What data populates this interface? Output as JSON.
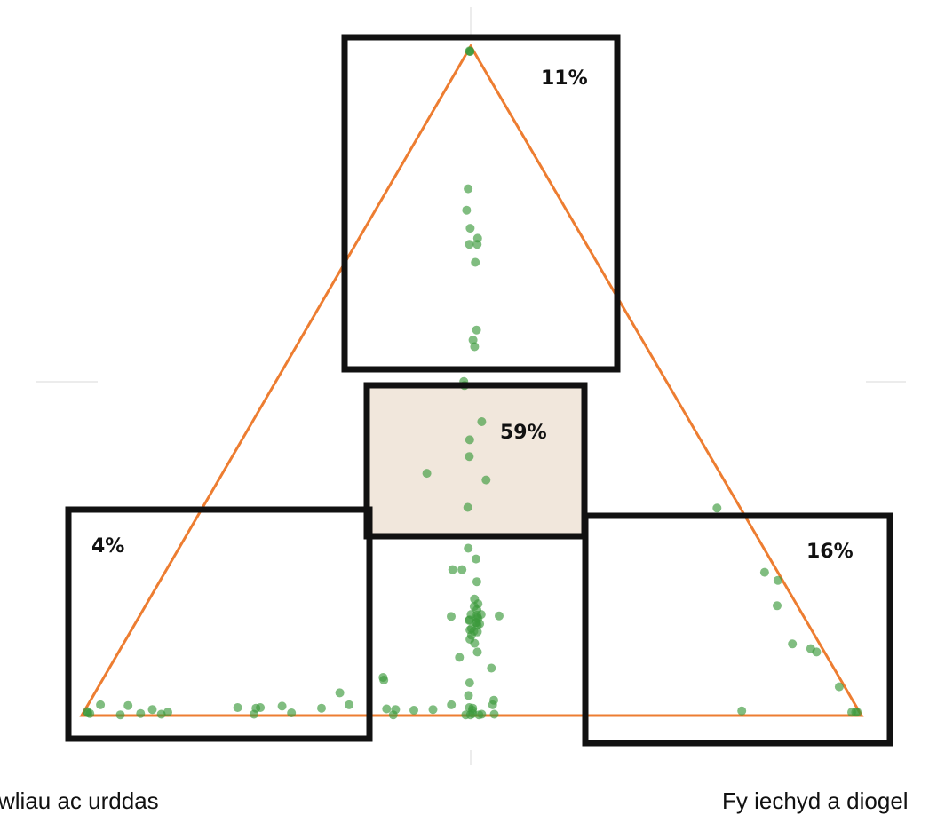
{
  "chart_data": {
    "type": "scatter",
    "layout": "ternary",
    "title": "",
    "corner_labels": {
      "left": "wliau ac urddas",
      "right": "Fy iechyd a diogel"
    },
    "regions": [
      {
        "id": "top",
        "label": "11%",
        "value": 11
      },
      {
        "id": "center",
        "label": "59%",
        "value": 59,
        "highlight_color": "#f1e7dc"
      },
      {
        "id": "left",
        "label": "4%",
        "value": 4
      },
      {
        "id": "right",
        "label": "16%",
        "value": 16
      }
    ],
    "colors": {
      "triangle": "#ed7d31",
      "points": "#3c9a3c",
      "boxes": "#111111"
    },
    "points": [
      [
        0.005,
        0.003,
        0.992
      ],
      [
        0.005,
        0.002,
        0.993
      ],
      [
        0.005,
        0.003,
        0.992
      ],
      [
        0.11,
        0.103,
        0.787
      ],
      [
        0.128,
        0.117,
        0.755
      ],
      [
        0.137,
        0.135,
        0.728
      ],
      [
        0.135,
        0.152,
        0.713
      ],
      [
        0.14,
        0.156,
        0.704
      ],
      [
        0.15,
        0.146,
        0.704
      ],
      [
        0.156,
        0.167,
        0.677
      ],
      [
        0.205,
        0.219,
        0.576
      ],
      [
        0.22,
        0.229,
        0.551
      ],
      [
        0.217,
        0.222,
        0.561
      ],
      [
        0.26,
        0.241,
        0.499
      ],
      [
        0.267,
        0.294,
        0.439
      ],
      [
        0.262,
        0.245,
        0.493
      ],
      [
        0.296,
        0.292,
        0.412
      ],
      [
        0.305,
        0.343,
        0.352
      ],
      [
        0.309,
        0.304,
        0.387
      ],
      [
        0.349,
        0.34,
        0.311
      ],
      [
        0.379,
        0.371,
        0.25
      ],
      [
        0.377,
        0.389,
        0.234
      ],
      [
        0.39,
        0.461,
        0.149
      ],
      [
        0.376,
        0.262,
        0.362
      ],
      [
        0.393,
        0.407,
        0.2
      ],
      [
        0.403,
        0.379,
        0.218
      ],
      [
        0.408,
        0.425,
        0.167
      ],
      [
        0.415,
        0.422,
        0.163
      ],
      [
        0.418,
        0.432,
        0.15
      ],
      [
        0.42,
        0.434,
        0.146
      ],
      [
        0.412,
        0.437,
        0.151
      ],
      [
        0.425,
        0.436,
        0.139
      ],
      [
        0.43,
        0.445,
        0.125
      ],
      [
        0.435,
        0.435,
        0.13
      ],
      [
        0.442,
        0.45,
        0.108
      ],
      [
        0.44,
        0.44,
        0.12
      ],
      [
        0.425,
        0.424,
        0.151
      ],
      [
        0.424,
        0.437,
        0.139
      ],
      [
        0.431,
        0.426,
        0.143
      ],
      [
        0.445,
        0.441,
        0.114
      ],
      [
        0.409,
        0.417,
        0.174
      ],
      [
        0.419,
        0.436,
        0.145
      ],
      [
        0.425,
        0.44,
        0.135
      ],
      [
        0.432,
        0.426,
        0.142
      ],
      [
        0.421,
        0.442,
        0.137
      ],
      [
        0.414,
        0.428,
        0.158
      ],
      [
        0.434,
        0.44,
        0.126
      ],
      [
        0.438,
        0.434,
        0.128
      ],
      [
        0.445,
        0.46,
        0.095
      ],
      [
        0.452,
        0.4,
        0.148
      ],
      [
        0.415,
        0.367,
        0.218
      ],
      [
        0.472,
        0.441,
        0.087
      ],
      [
        0.486,
        0.512,
        0.002
      ],
      [
        0.439,
        0.49,
        0.071
      ],
      [
        0.478,
        0.473,
        0.049
      ],
      [
        0.489,
        0.481,
        0.03
      ],
      [
        0.47,
        0.528,
        0.002
      ],
      [
        0.46,
        0.517,
        0.023
      ],
      [
        0.465,
        0.519,
        0.016
      ],
      [
        0.497,
        0.491,
        0.012
      ],
      [
        0.501,
        0.498,
        0.001
      ],
      [
        0.507,
        0.492,
        0.001
      ],
      [
        0.49,
        0.509,
        0.001
      ],
      [
        0.497,
        0.5,
        0.003
      ],
      [
        0.495,
        0.497,
        0.008
      ],
      [
        0.493,
        0.496,
        0.011
      ],
      [
        0.518,
        0.466,
        0.016
      ],
      [
        0.545,
        0.446,
        0.009
      ],
      [
        0.57,
        0.422,
        0.008
      ],
      [
        0.593,
        0.398,
        0.009
      ],
      [
        0.604,
        0.386,
        0.01
      ],
      [
        0.6,
        0.399,
        0.001
      ],
      [
        0.585,
        0.358,
        0.057
      ],
      [
        0.586,
        0.361,
        0.053
      ],
      [
        0.652,
        0.314,
        0.034
      ],
      [
        0.649,
        0.335,
        0.016
      ],
      [
        0.687,
        0.302,
        0.011
      ],
      [
        0.729,
        0.267,
        0.004
      ],
      [
        0.736,
        0.25,
        0.014
      ],
      [
        0.765,
        0.223,
        0.012
      ],
      [
        0.771,
        0.218,
        0.011
      ],
      [
        0.778,
        0.22,
        0.002
      ],
      [
        0.794,
        0.194,
        0.012
      ],
      [
        0.905,
        0.086,
        0.009
      ],
      [
        0.887,
        0.108,
        0.005
      ],
      [
        0.897,
        0.101,
        0.002
      ],
      [
        0.923,
        0.074,
        0.003
      ],
      [
        0.933,
        0.052,
        0.015
      ],
      [
        0.95,
        0.049,
        0.001
      ],
      [
        0.968,
        0.016,
        0.016
      ],
      [
        0.99,
        0.004,
        0.006
      ],
      [
        0.99,
        0.006,
        0.004
      ],
      [
        0.988,
        0.009,
        0.003
      ],
      [
        0.006,
        0.792,
        0.202
      ],
      [
        0.017,
        0.769,
        0.214
      ],
      [
        0.035,
        0.858,
        0.107
      ],
      [
        0.01,
        0.895,
        0.095
      ],
      [
        0.015,
        0.885,
        0.1
      ],
      [
        0.026,
        0.81,
        0.164
      ],
      [
        0.03,
        0.66,
        0.31
      ],
      [
        0.15,
        0.843,
        0.007
      ],
      [
        0.01,
        0.985,
        0.005
      ],
      [
        0.005,
        0.99,
        0.005
      ],
      [
        0.003,
        0.992,
        0.005
      ],
      [
        0.007,
        0.95,
        0.043
      ]
    ]
  }
}
